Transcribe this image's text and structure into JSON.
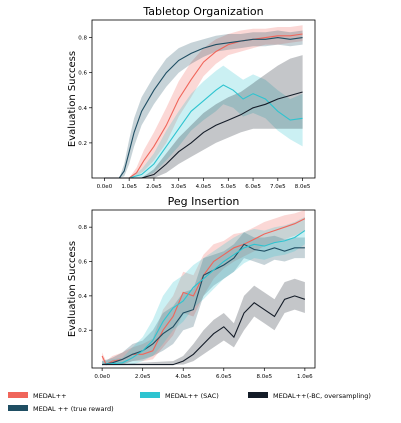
{
  "chart_data": [
    {
      "type": "line",
      "title": "Tabletop Organization",
      "xlabel": "",
      "ylabel": "Evaluation Success",
      "xlim": [
        -50000,
        850000
      ],
      "ylim": [
        0,
        0.9
      ],
      "xticks": [
        0,
        100000,
        200000,
        300000,
        400000,
        500000,
        600000,
        700000,
        800000
      ],
      "xtick_labels": [
        "0.0e0",
        "1.0e5",
        "2.0e5",
        "3.0e5",
        "4.0e5",
        "5.0e5",
        "6.0e5",
        "7.0e5",
        "8.0e5"
      ],
      "yticks": [
        0.2,
        0.4,
        0.6,
        0.8
      ],
      "ytick_labels": [
        "0.2",
        "0.4",
        "0.6",
        "0.8"
      ],
      "series": [
        {
          "name": "MEDAL++",
          "color": "#f0655a",
          "x": [
            0,
            100000,
            130000,
            160000,
            200000,
            250000,
            300000,
            350000,
            400000,
            450000,
            500000,
            550000,
            600000,
            650000,
            700000,
            750000,
            800000
          ],
          "y": [
            0,
            0,
            0.03,
            0.1,
            0.18,
            0.3,
            0.45,
            0.56,
            0.66,
            0.72,
            0.76,
            0.78,
            0.79,
            0.8,
            0.81,
            0.81,
            0.82
          ],
          "lower": [
            0,
            0,
            0.01,
            0.04,
            0.1,
            0.2,
            0.35,
            0.46,
            0.58,
            0.65,
            0.7,
            0.72,
            0.74,
            0.76,
            0.76,
            0.77,
            0.78
          ],
          "upper": [
            0,
            0,
            0.06,
            0.16,
            0.26,
            0.4,
            0.55,
            0.66,
            0.74,
            0.79,
            0.82,
            0.84,
            0.85,
            0.85,
            0.86,
            0.86,
            0.87
          ]
        },
        {
          "name": "MEDAL ++ (true reward)",
          "color": "#1f4e63",
          "x": [
            0,
            60000,
            80000,
            100000,
            120000,
            150000,
            200000,
            250000,
            300000,
            350000,
            400000,
            450000,
            500000,
            550000,
            600000,
            650000,
            700000,
            750000,
            800000
          ],
          "y": [
            0,
            0,
            0.04,
            0.15,
            0.26,
            0.38,
            0.5,
            0.6,
            0.67,
            0.71,
            0.74,
            0.76,
            0.77,
            0.78,
            0.79,
            0.79,
            0.8,
            0.79,
            0.8
          ],
          "lower": [
            0,
            0,
            0.01,
            0.08,
            0.18,
            0.3,
            0.42,
            0.52,
            0.6,
            0.65,
            0.69,
            0.72,
            0.73,
            0.74,
            0.75,
            0.75,
            0.76,
            0.75,
            0.76
          ],
          "upper": [
            0,
            0,
            0.08,
            0.22,
            0.34,
            0.46,
            0.58,
            0.68,
            0.74,
            0.77,
            0.79,
            0.81,
            0.82,
            0.82,
            0.83,
            0.83,
            0.84,
            0.83,
            0.84
          ]
        },
        {
          "name": "MEDAL++ (SAC)",
          "color": "#2ec4d0",
          "x": [
            0,
            100000,
            150000,
            200000,
            250000,
            300000,
            350000,
            400000,
            450000,
            480000,
            520000,
            560000,
            600000,
            650000,
            700000,
            750000,
            800000
          ],
          "y": [
            0,
            0,
            0.02,
            0.08,
            0.18,
            0.28,
            0.38,
            0.44,
            0.5,
            0.53,
            0.5,
            0.45,
            0.48,
            0.45,
            0.38,
            0.33,
            0.34
          ],
          "lower": [
            0,
            0,
            0.0,
            0.03,
            0.1,
            0.18,
            0.27,
            0.33,
            0.38,
            0.42,
            0.4,
            0.35,
            0.37,
            0.34,
            0.27,
            0.22,
            0.18
          ],
          "upper": [
            0,
            0,
            0.05,
            0.14,
            0.27,
            0.38,
            0.48,
            0.55,
            0.61,
            0.64,
            0.6,
            0.56,
            0.59,
            0.56,
            0.5,
            0.45,
            0.48
          ]
        },
        {
          "name": "MEDAL++(-BC, oversampling)",
          "color": "#141c28",
          "x": [
            0,
            150000,
            200000,
            250000,
            300000,
            350000,
            400000,
            450000,
            500000,
            550000,
            600000,
            650000,
            700000,
            750000,
            800000
          ],
          "y": [
            0,
            0,
            0.02,
            0.08,
            0.15,
            0.2,
            0.26,
            0.3,
            0.33,
            0.36,
            0.4,
            0.42,
            0.45,
            0.47,
            0.49
          ],
          "lower": [
            0,
            0,
            0.0,
            0.03,
            0.08,
            0.12,
            0.16,
            0.2,
            0.23,
            0.26,
            0.28,
            0.28,
            0.28,
            0.28,
            0.28
          ],
          "upper": [
            0,
            0,
            0.05,
            0.14,
            0.23,
            0.3,
            0.37,
            0.42,
            0.46,
            0.49,
            0.54,
            0.59,
            0.64,
            0.68,
            0.7
          ]
        }
      ]
    },
    {
      "type": "line",
      "title": "Peg Insertion",
      "xlabel": "",
      "ylabel": "Evaluation Success",
      "xlim": [
        -50000,
        1050000
      ],
      "ylim": [
        -0.02,
        0.9
      ],
      "xticks": [
        0,
        200000,
        400000,
        600000,
        800000,
        1000000
      ],
      "xtick_labels": [
        "0.0e0",
        "2.0e5",
        "4.0e5",
        "6.0e5",
        "8.0e5",
        "1.0e6"
      ],
      "yticks": [
        0.2,
        0.4,
        0.6,
        0.8
      ],
      "ytick_labels": [
        "0.2",
        "0.4",
        "0.6",
        "0.8"
      ],
      "series": [
        {
          "name": "MEDAL++",
          "color": "#f0655a",
          "x": [
            0,
            20000,
            50000,
            100000,
            150000,
            200000,
            250000,
            300000,
            350000,
            400000,
            450000,
            500000,
            550000,
            600000,
            650000,
            700000,
            750000,
            800000,
            850000,
            900000,
            950000,
            1000000
          ],
          "y": [
            0.05,
            0.0,
            0.02,
            0.03,
            0.06,
            0.06,
            0.08,
            0.2,
            0.28,
            0.42,
            0.4,
            0.52,
            0.6,
            0.64,
            0.68,
            0.7,
            0.73,
            0.76,
            0.78,
            0.8,
            0.82,
            0.85
          ],
          "lower": [
            0.0,
            0.0,
            0.0,
            0.0,
            0.02,
            0.02,
            0.03,
            0.1,
            0.17,
            0.3,
            0.28,
            0.4,
            0.5,
            0.56,
            0.6,
            0.63,
            0.66,
            0.69,
            0.71,
            0.73,
            0.75,
            0.78
          ],
          "upper": [
            0.07,
            0.02,
            0.05,
            0.07,
            0.1,
            0.12,
            0.15,
            0.32,
            0.4,
            0.54,
            0.52,
            0.64,
            0.7,
            0.72,
            0.76,
            0.77,
            0.8,
            0.83,
            0.85,
            0.87,
            0.88,
            0.9
          ]
        },
        {
          "name": "MEDAL ++ (true reward)",
          "color": "#1f4e63",
          "x": [
            0,
            50000,
            100000,
            150000,
            200000,
            250000,
            300000,
            350000,
            400000,
            450000,
            500000,
            550000,
            600000,
            650000,
            700000,
            750000,
            800000,
            850000,
            900000,
            950000,
            1000000
          ],
          "y": [
            0,
            0.01,
            0.03,
            0.06,
            0.08,
            0.12,
            0.18,
            0.22,
            0.3,
            0.32,
            0.52,
            0.55,
            0.58,
            0.62,
            0.7,
            0.67,
            0.66,
            0.68,
            0.66,
            0.68,
            0.68
          ],
          "lower": [
            0,
            0.0,
            0.0,
            0.02,
            0.03,
            0.05,
            0.08,
            0.12,
            0.2,
            0.22,
            0.4,
            0.46,
            0.5,
            0.54,
            0.62,
            0.6,
            0.58,
            0.61,
            0.6,
            0.62,
            0.62
          ],
          "upper": [
            0.02,
            0.04,
            0.07,
            0.12,
            0.14,
            0.2,
            0.3,
            0.34,
            0.42,
            0.44,
            0.62,
            0.64,
            0.66,
            0.7,
            0.77,
            0.74,
            0.74,
            0.75,
            0.73,
            0.74,
            0.74
          ]
        },
        {
          "name": "MEDAL++ (SAC)",
          "color": "#2ec4d0",
          "x": [
            0,
            100000,
            150000,
            200000,
            250000,
            300000,
            350000,
            400000,
            450000,
            500000,
            550000,
            600000,
            650000,
            700000,
            750000,
            800000,
            850000,
            900000,
            950000,
            1000000
          ],
          "y": [
            0,
            0.01,
            0.04,
            0.08,
            0.14,
            0.25,
            0.33,
            0.37,
            0.45,
            0.5,
            0.55,
            0.6,
            0.64,
            0.68,
            0.7,
            0.69,
            0.71,
            0.72,
            0.74,
            0.78
          ],
          "lower": [
            0,
            0.0,
            0.0,
            0.02,
            0.05,
            0.12,
            0.2,
            0.25,
            0.33,
            0.38,
            0.44,
            0.5,
            0.54,
            0.59,
            0.62,
            0.61,
            0.63,
            0.64,
            0.66,
            0.7
          ],
          "upper": [
            0.02,
            0.04,
            0.1,
            0.16,
            0.26,
            0.4,
            0.48,
            0.52,
            0.58,
            0.62,
            0.66,
            0.7,
            0.74,
            0.77,
            0.79,
            0.78,
            0.8,
            0.81,
            0.83,
            0.86
          ]
        },
        {
          "name": "MEDAL++(-BC, oversampling)",
          "color": "#141c28",
          "x": [
            0,
            350000,
            400000,
            450000,
            500000,
            550000,
            600000,
            650000,
            700000,
            750000,
            800000,
            850000,
            900000,
            950000,
            1000000
          ],
          "y": [
            0,
            0.0,
            0.02,
            0.06,
            0.12,
            0.18,
            0.22,
            0.16,
            0.3,
            0.36,
            0.32,
            0.28,
            0.38,
            0.4,
            0.38
          ],
          "lower": [
            0,
            0.0,
            0.0,
            0.02,
            0.06,
            0.1,
            0.14,
            0.1,
            0.2,
            0.28,
            0.24,
            0.2,
            0.3,
            0.32,
            0.3
          ],
          "upper": [
            0,
            0.02,
            0.05,
            0.12,
            0.2,
            0.26,
            0.3,
            0.24,
            0.4,
            0.46,
            0.42,
            0.38,
            0.48,
            0.5,
            0.48
          ]
        }
      ]
    }
  ],
  "legend": {
    "placement": "bottom",
    "entries": [
      {
        "label": "MEDAL++",
        "color": "#f0655a"
      },
      {
        "label": "MEDAL ++ (true reward)",
        "color": "#1f4e63"
      },
      {
        "label": "MEDAL++ (SAC)",
        "color": "#2ec4d0"
      },
      {
        "label": "MEDAL++(-BC, oversampling)",
        "color": "#141c28"
      }
    ]
  }
}
